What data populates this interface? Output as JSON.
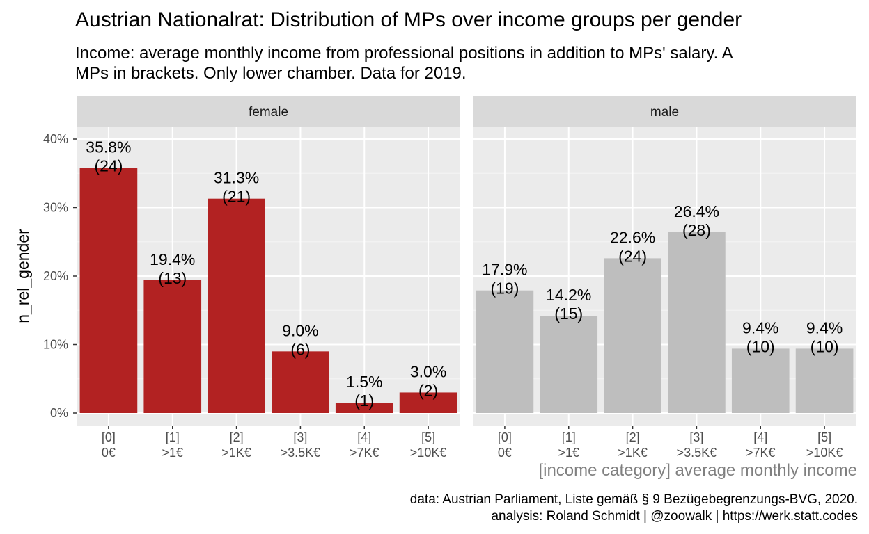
{
  "title": "Austrian Nationalrat: Distribution of MPs over income groups per gender",
  "subtitle": "Income: average monthly income from professional positions in addition to MPs' salary. A\nMPs in brackets. Only lower chamber. Data for 2019.",
  "caption": "data: Austrian Parliament, Liste gemäß § 9 Bezügebegrenzungs-BVG, 2020.\nanalysis: Roland Schmidt | @zoowalk | https://werk.statt.codes",
  "chart_data": {
    "type": "bar",
    "xlabel": "[income category] average monthly income",
    "ylabel": "n_rel_gender",
    "ylim": [
      0,
      0.4
    ],
    "y_ticks": [
      0,
      0.1,
      0.2,
      0.3,
      0.4
    ],
    "y_tick_labels": [
      "0%",
      "10%",
      "20%",
      "30%",
      "40%"
    ],
    "categories": [
      "[0]\n0€",
      "[1]\n>1€",
      "[2]\n>1K€",
      "[3]\n>3.5K€",
      "[4]\n>7K€",
      "[5]\n>10K€"
    ],
    "panels": [
      {
        "name": "female",
        "color": "#b22222",
        "values": [
          0.358,
          0.194,
          0.313,
          0.09,
          0.015,
          0.03
        ],
        "labels": [
          "35.8%\n(24)",
          "19.4%\n(13)",
          "31.3%\n(21)",
          "9.0%\n(6)",
          "1.5%\n(1)",
          "3.0%\n(2)"
        ]
      },
      {
        "name": "male",
        "color": "#bebebe",
        "values": [
          0.179,
          0.142,
          0.226,
          0.264,
          0.094,
          0.094
        ],
        "labels": [
          "17.9%\n(19)",
          "14.2%\n(15)",
          "22.6%\n(24)",
          "26.4%\n(28)",
          "9.4%\n(10)",
          "9.4%\n(10)"
        ]
      }
    ],
    "grid": true,
    "panel_background": "#ebebeb",
    "strip_background": "#d9d9d9"
  }
}
